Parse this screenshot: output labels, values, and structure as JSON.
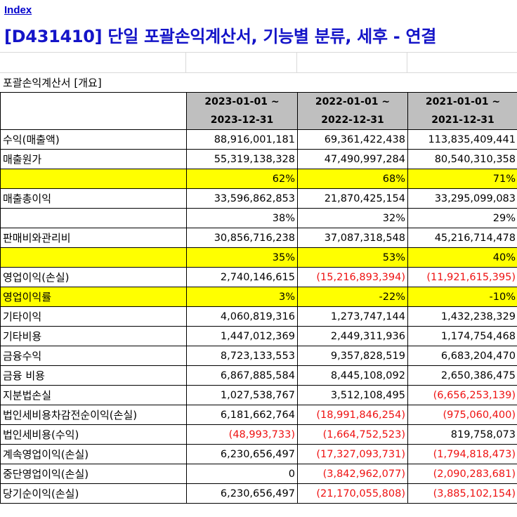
{
  "index_link": "Index",
  "title": "[D431410] 단일 포괄손익계산서, 기능별 분류, 세후 - 연결",
  "section_label": "포괄손익계산서 [개요]",
  "columns": [
    {
      "start": "2023-01-01 ~",
      "end": "2023-12-31"
    },
    {
      "start": "2022-01-01 ~",
      "end": "2022-12-31"
    },
    {
      "start": "2021-01-01 ~",
      "end": "2021-12-31"
    }
  ],
  "colors": {
    "highlight": "#ffff00",
    "negative": "#ee1111",
    "header_bg": "#bfbfbf",
    "link": "#0000cc",
    "title": "#1414c8"
  },
  "rows": [
    {
      "label": "수익(매출액)",
      "values": [
        "88,916,001,181",
        "69,361,422,438",
        "113,835,409,441"
      ],
      "highlight": false,
      "label_highlight": false,
      "neg": [
        false,
        false,
        false
      ]
    },
    {
      "label": "매출원가",
      "values": [
        "55,319,138,328",
        "47,490,997,284",
        "80,540,310,358"
      ],
      "highlight": false,
      "label_highlight": false,
      "neg": [
        false,
        false,
        false
      ]
    },
    {
      "label": "",
      "values": [
        "62%",
        "68%",
        "71%"
      ],
      "highlight": true,
      "label_highlight": true,
      "neg": [
        false,
        false,
        false
      ]
    },
    {
      "label": "매출총이익",
      "values": [
        "33,596,862,853",
        "21,870,425,154",
        "33,295,099,083"
      ],
      "highlight": false,
      "label_highlight": false,
      "neg": [
        false,
        false,
        false
      ]
    },
    {
      "label": "",
      "values": [
        "38%",
        "32%",
        "29%"
      ],
      "highlight": false,
      "label_highlight": false,
      "neg": [
        false,
        false,
        false
      ]
    },
    {
      "label": "판매비와관리비",
      "values": [
        "30,856,716,238",
        "37,087,318,548",
        "45,216,714,478"
      ],
      "highlight": false,
      "label_highlight": false,
      "neg": [
        false,
        false,
        false
      ]
    },
    {
      "label": "",
      "values": [
        "35%",
        "53%",
        "40%"
      ],
      "highlight": true,
      "label_highlight": true,
      "neg": [
        false,
        false,
        false
      ]
    },
    {
      "label": "영업이익(손실)",
      "values": [
        "2,740,146,615",
        "(15,216,893,394)",
        "(11,921,615,395)"
      ],
      "highlight": false,
      "label_highlight": false,
      "neg": [
        false,
        true,
        true
      ]
    },
    {
      "label": "영업이익률",
      "values": [
        "3%",
        "-22%",
        "-10%"
      ],
      "highlight": true,
      "label_highlight": true,
      "neg": [
        false,
        false,
        false
      ]
    },
    {
      "label": "기타이익",
      "values": [
        "4,060,819,316",
        "1,273,747,144",
        "1,432,238,329"
      ],
      "highlight": false,
      "label_highlight": false,
      "neg": [
        false,
        false,
        false
      ]
    },
    {
      "label": "기타비용",
      "values": [
        "1,447,012,369",
        "2,449,311,936",
        "1,174,754,468"
      ],
      "highlight": false,
      "label_highlight": false,
      "neg": [
        false,
        false,
        false
      ]
    },
    {
      "label": "금융수익",
      "values": [
        "8,723,133,553",
        "9,357,828,519",
        "6,683,204,470"
      ],
      "highlight": false,
      "label_highlight": false,
      "neg": [
        false,
        false,
        false
      ]
    },
    {
      "label": "금융 비용",
      "values": [
        "6,867,885,584",
        "8,445,108,092",
        "2,650,386,475"
      ],
      "highlight": false,
      "label_highlight": false,
      "neg": [
        false,
        false,
        false
      ]
    },
    {
      "label": "지분법손실",
      "values": [
        "1,027,538,767",
        "3,512,108,495",
        "(6,656,253,139)"
      ],
      "highlight": false,
      "label_highlight": false,
      "neg": [
        false,
        false,
        true
      ]
    },
    {
      "label": "법인세비용차감전순이익(손실)",
      "values": [
        "6,181,662,764",
        "(18,991,846,254)",
        "(975,060,400)"
      ],
      "highlight": false,
      "label_highlight": false,
      "neg": [
        false,
        true,
        true
      ]
    },
    {
      "label": "법인세비용(수익)",
      "values": [
        "(48,993,733)",
        "(1,664,752,523)",
        "819,758,073"
      ],
      "highlight": false,
      "label_highlight": false,
      "neg": [
        true,
        true,
        false
      ]
    },
    {
      "label": "계속영업이익(손실)",
      "values": [
        "6,230,656,497",
        "(17,327,093,731)",
        "(1,794,818,473)"
      ],
      "highlight": false,
      "label_highlight": false,
      "neg": [
        false,
        true,
        true
      ]
    },
    {
      "label": "중단영업이익(손실)",
      "values": [
        "0",
        "(3,842,962,077)",
        "(2,090,283,681)"
      ],
      "highlight": false,
      "label_highlight": false,
      "neg": [
        false,
        true,
        true
      ]
    },
    {
      "label": "당기순이익(손실)",
      "values": [
        "6,230,656,497",
        "(21,170,055,808)",
        "(3,885,102,154)"
      ],
      "highlight": false,
      "label_highlight": false,
      "neg": [
        false,
        true,
        true
      ]
    }
  ]
}
